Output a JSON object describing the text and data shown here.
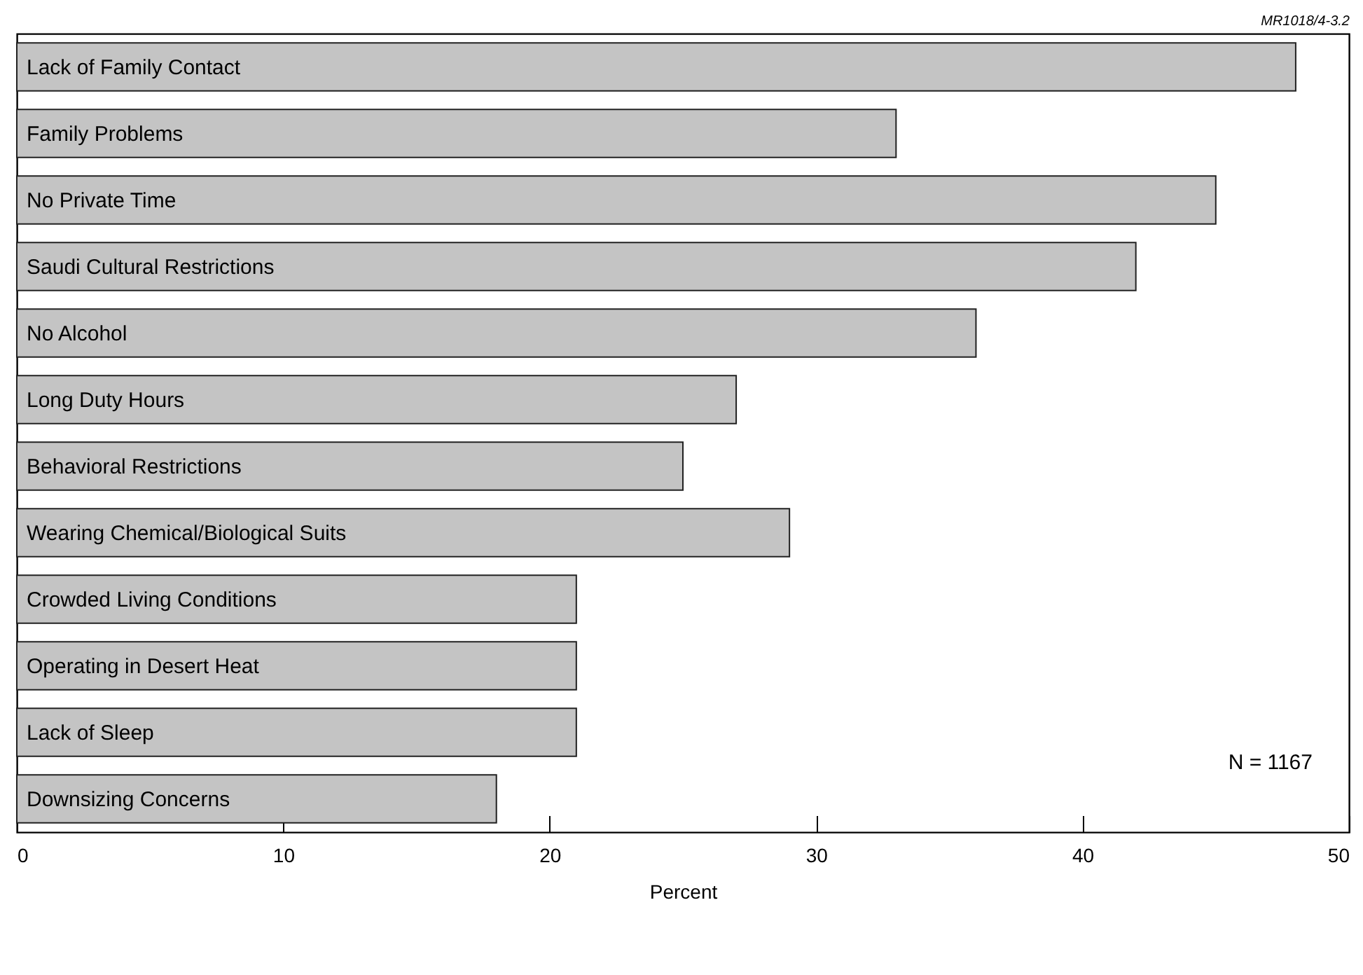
{
  "chart_data": {
    "type": "bar",
    "orientation": "horizontal",
    "xlabel": "Percent",
    "categories": [
      "Lack of Family Contact",
      "Family Problems",
      "No Private Time",
      "Saudi Cultural Restrictions",
      "No Alcohol",
      "Long Duty Hours",
      "Behavioral Restrictions",
      "Wearing Chemical/Biological Suits",
      "Crowded Living Conditions",
      "Operating in Desert Heat",
      "Lack of Sleep",
      "Downsizing Concerns"
    ],
    "values": [
      48,
      33,
      45,
      42,
      36,
      27,
      25,
      29,
      21,
      21,
      21,
      18
    ],
    "color": "#c4c4c4",
    "xlim": [
      0,
      50
    ],
    "xticks": [
      0,
      10,
      20,
      30,
      40,
      50
    ],
    "grid": false,
    "annotations": [
      "MR1018/4-3.2",
      "N = 1167"
    ]
  }
}
